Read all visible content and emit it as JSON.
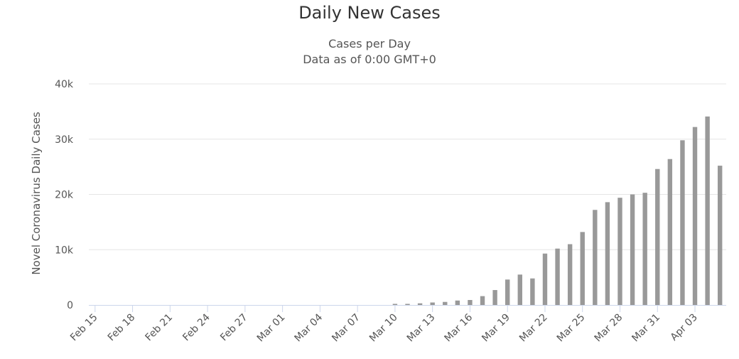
{
  "chart_data": {
    "type": "bar",
    "title": "Daily New Cases",
    "subtitle": [
      "Cases per Day",
      "Data as of 0:00 GMT+0"
    ],
    "xlabel": "",
    "ylabel": "Novel Coronavirus Daily Cases",
    "ylim": [
      0,
      40000
    ],
    "yticks": [
      0,
      10000,
      20000,
      30000,
      40000
    ],
    "ytick_labels": [
      "0",
      "10k",
      "20k",
      "30k",
      "40k"
    ],
    "x_tick_labels": [
      "Feb 15",
      "Feb 18",
      "Feb 21",
      "Feb 24",
      "Feb 27",
      "Mar 01",
      "Mar 04",
      "Mar 07",
      "Mar 10",
      "Mar 13",
      "Mar 16",
      "Mar 19",
      "Mar 22",
      "Mar 25",
      "Mar 28",
      "Mar 31",
      "Apr 03"
    ],
    "categories": [
      "Feb 15",
      "Feb 16",
      "Feb 17",
      "Feb 18",
      "Feb 19",
      "Feb 20",
      "Feb 21",
      "Feb 22",
      "Feb 23",
      "Feb 24",
      "Feb 25",
      "Feb 26",
      "Feb 27",
      "Feb 28",
      "Feb 29",
      "Mar 01",
      "Mar 02",
      "Mar 03",
      "Mar 04",
      "Mar 05",
      "Mar 06",
      "Mar 07",
      "Mar 08",
      "Mar 09",
      "Mar 10",
      "Mar 11",
      "Mar 12",
      "Mar 13",
      "Mar 14",
      "Mar 15",
      "Mar 16",
      "Mar 17",
      "Mar 18",
      "Mar 19",
      "Mar 20",
      "Mar 21",
      "Mar 22",
      "Mar 23",
      "Mar 24",
      "Mar 25",
      "Mar 26",
      "Mar 27",
      "Mar 28",
      "Mar 29",
      "Mar 30",
      "Mar 31",
      "Apr 01",
      "Apr 02",
      "Apr 03",
      "Apr 04",
      "Apr 05"
    ],
    "values": [
      0,
      0,
      0,
      0,
      0,
      0,
      0,
      0,
      0,
      0,
      0,
      0,
      0,
      0,
      0,
      0,
      0,
      0,
      0,
      0,
      0,
      0,
      0,
      0,
      200,
      200,
      300,
      450,
      550,
      800,
      900,
      1600,
      2700,
      4600,
      5500,
      4800,
      9300,
      10200,
      11000,
      13200,
      17200,
      18600,
      19400,
      20000,
      20300,
      24600,
      26400,
      29800,
      32200,
      34100,
      25200
    ],
    "bar_color": "#999999",
    "grid": true,
    "grid_color": "#e6e6e6",
    "axis_color": "#ccd6eb"
  }
}
